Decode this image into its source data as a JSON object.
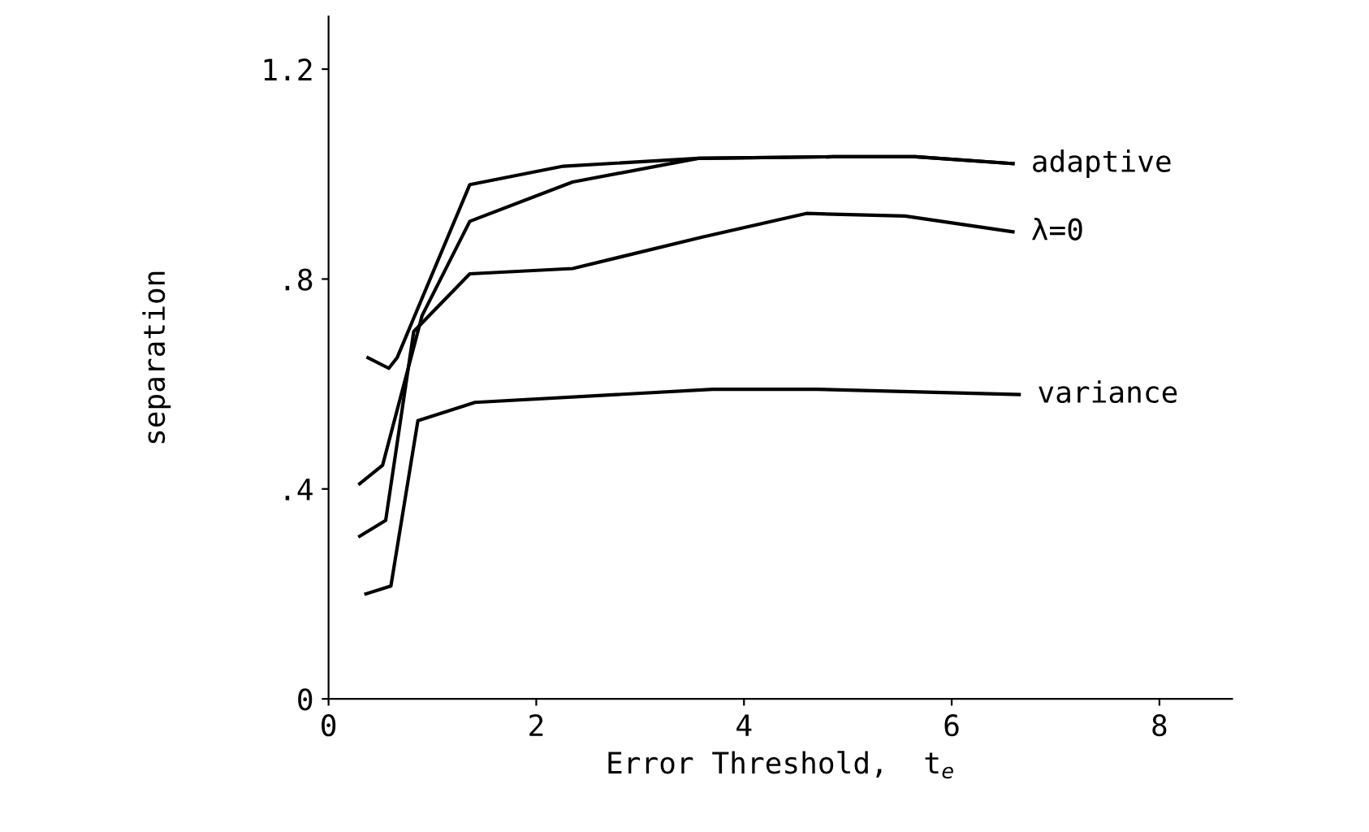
{
  "chart_data": {
    "type": "line",
    "xlabel": "Error Threshold,  t$_{e}$",
    "ylabel": "separation",
    "xlim": [
      0,
      8.7
    ],
    "ylim": [
      0,
      1.3
    ],
    "xticks": [
      0,
      2,
      4,
      6,
      8
    ],
    "yticks": [
      0,
      {
        "value": 0.4,
        "label": ".4"
      },
      {
        "value": 0.8,
        "label": ".8"
      },
      1.2
    ],
    "grid": false,
    "legend": false,
    "marker": "none",
    "line_style": "solid",
    "series": [
      {
        "name": "adaptive",
        "color": "#000000",
        "x": [
          0.38,
          0.58,
          0.66,
          1.36,
          2.26,
          3.56,
          4.86,
          5.65,
          6.59
        ],
        "values": [
          0.65,
          0.63,
          0.65,
          0.98,
          1.015,
          1.03,
          1.033,
          1.033,
          1.02
        ]
      },
      {
        "color": "#000000",
        "x": [
          0.3,
          0.52,
          0.9,
          1.36,
          2.35,
          3.56,
          4.86,
          5.65,
          6.59
        ],
        "values": [
          0.41,
          0.445,
          0.73,
          0.91,
          0.985,
          1.03,
          1.033,
          1.033,
          1.02
        ]
      },
      {
        "name": "λ=0",
        "color": "#000000",
        "x": [
          0.3,
          0.55,
          0.82,
          1.36,
          2.35,
          3.6,
          4.6,
          5.55,
          6.59
        ],
        "values": [
          0.31,
          0.34,
          0.7,
          0.81,
          0.82,
          0.88,
          0.925,
          0.92,
          0.89
        ]
      },
      {
        "name": "variance",
        "color": "#000000",
        "x": [
          0.36,
          0.6,
          0.86,
          1.41,
          3.7,
          4.7,
          6.65
        ],
        "values": [
          0.2,
          0.215,
          0.53,
          0.565,
          0.59,
          0.59,
          0.58
        ]
      }
    ]
  }
}
